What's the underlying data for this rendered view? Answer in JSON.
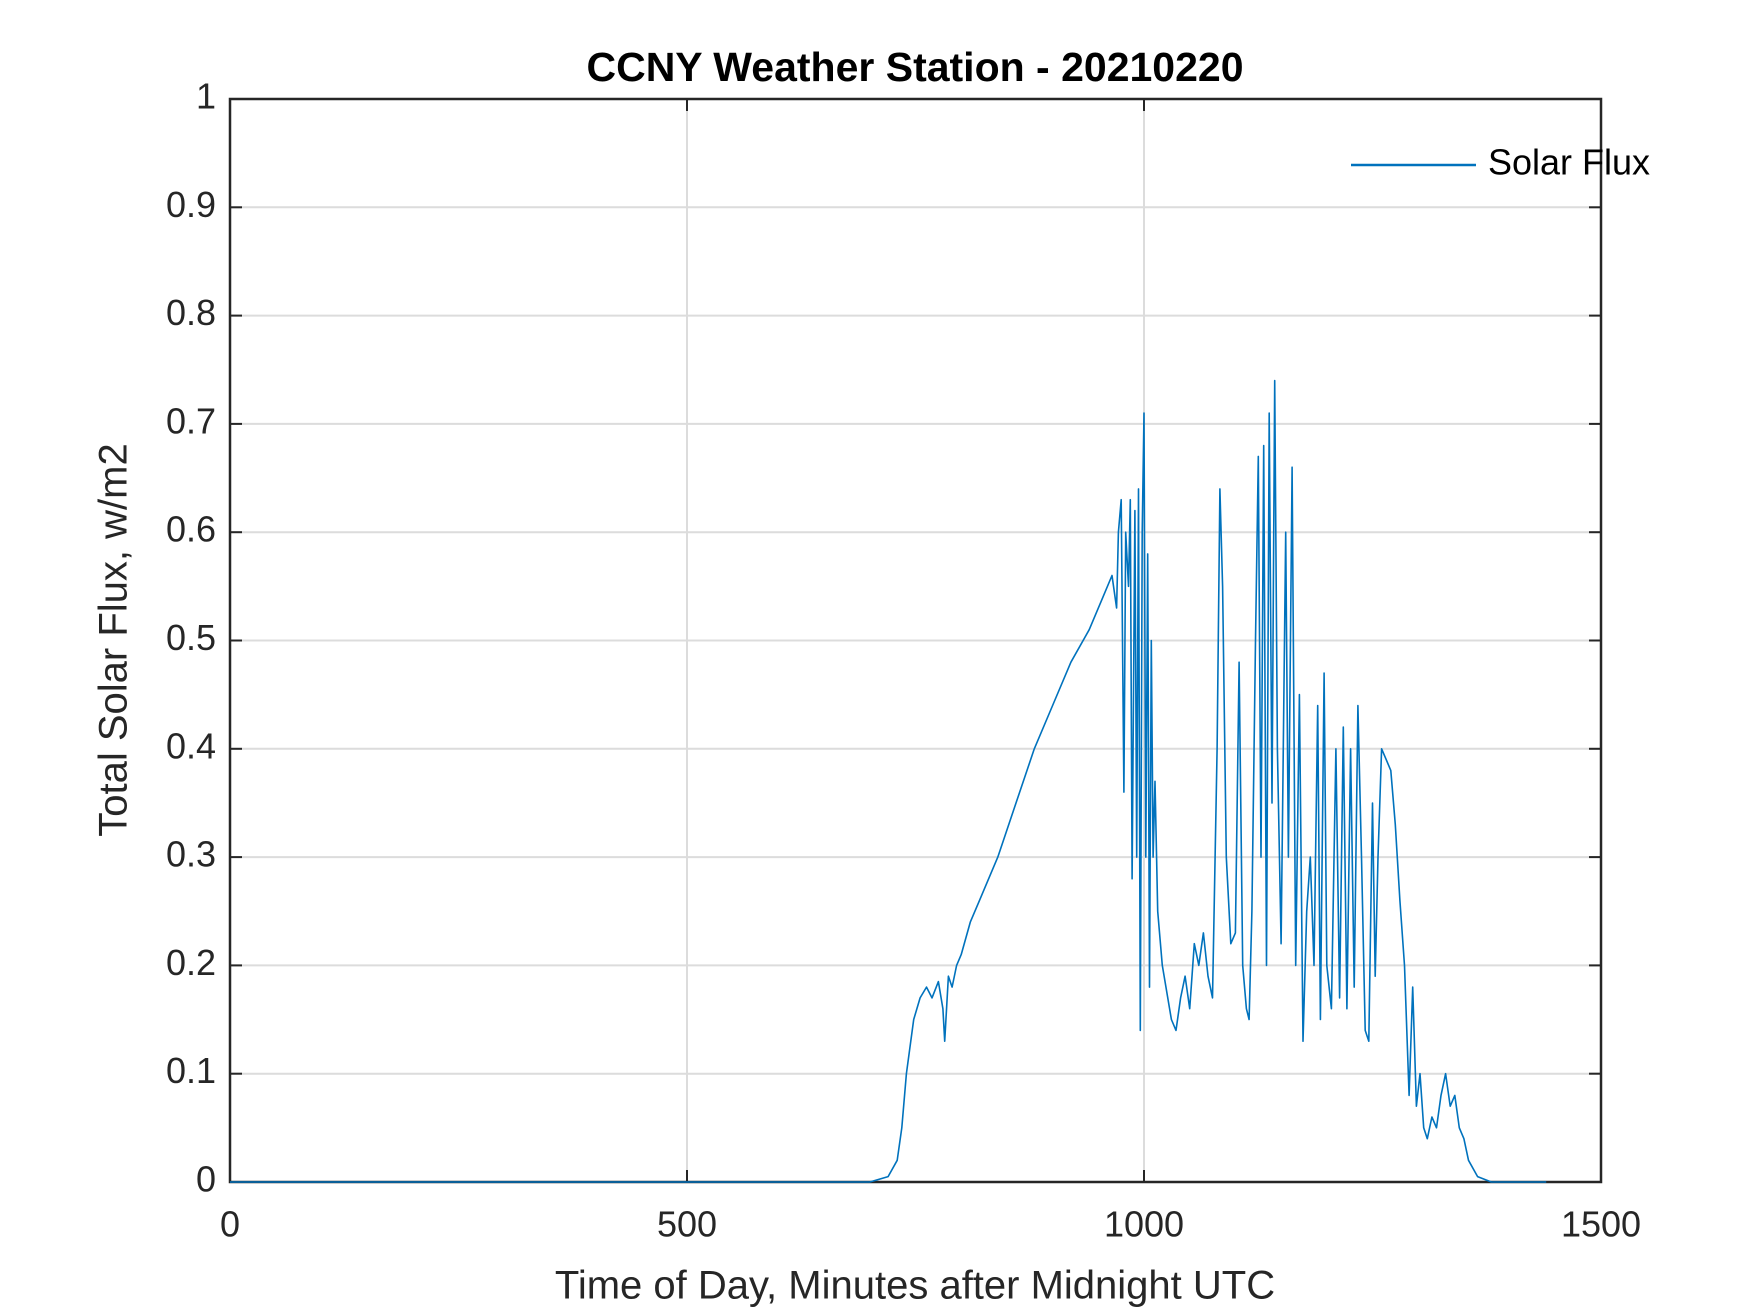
{
  "chart_data": {
    "type": "line",
    "title": "CCNY Weather Station - 20210220",
    "xlabel": "Time of Day, Minutes after Midnight UTC",
    "ylabel": "Total Solar Flux, w/m2",
    "x": [
      0,
      700,
      720,
      730,
      735,
      740,
      748,
      755,
      762,
      768,
      775,
      780,
      782,
      786,
      790,
      795,
      800,
      810,
      820,
      840,
      860,
      880,
      900,
      920,
      940,
      955,
      965,
      970,
      972,
      975,
      978,
      980,
      983,
      985,
      987,
      990,
      992,
      994,
      996,
      998,
      1000,
      1002,
      1004,
      1006,
      1008,
      1010,
      1012,
      1015,
      1020,
      1030,
      1035,
      1040,
      1045,
      1050,
      1055,
      1060,
      1065,
      1070,
      1075,
      1080,
      1083,
      1086,
      1090,
      1095,
      1100,
      1104,
      1108,
      1112,
      1115,
      1118,
      1122,
      1125,
      1128,
      1131,
      1134,
      1137,
      1140,
      1143,
      1146,
      1150,
      1155,
      1158,
      1162,
      1166,
      1170,
      1174,
      1178,
      1182,
      1186,
      1190,
      1193,
      1197,
      1200,
      1205,
      1210,
      1214,
      1218,
      1222,
      1226,
      1230,
      1234,
      1238,
      1242,
      1246,
      1250,
      1253,
      1256,
      1260,
      1265,
      1270,
      1275,
      1280,
      1285,
      1290,
      1294,
      1298,
      1302,
      1306,
      1310,
      1315,
      1320,
      1325,
      1330,
      1335,
      1340,
      1345,
      1350,
      1355,
      1365,
      1380,
      1440
    ],
    "series": [
      {
        "name": "Solar Flux",
        "color": "#0072bd",
        "values": [
          0,
          0,
          0.005,
          0.02,
          0.05,
          0.1,
          0.15,
          0.17,
          0.18,
          0.17,
          0.185,
          0.16,
          0.13,
          0.19,
          0.18,
          0.2,
          0.21,
          0.24,
          0.26,
          0.3,
          0.35,
          0.4,
          0.44,
          0.48,
          0.51,
          0.54,
          0.56,
          0.53,
          0.6,
          0.63,
          0.36,
          0.6,
          0.55,
          0.63,
          0.28,
          0.62,
          0.3,
          0.64,
          0.14,
          0.6,
          0.71,
          0.3,
          0.58,
          0.18,
          0.5,
          0.3,
          0.37,
          0.25,
          0.2,
          0.15,
          0.14,
          0.17,
          0.19,
          0.16,
          0.22,
          0.2,
          0.23,
          0.19,
          0.17,
          0.4,
          0.64,
          0.55,
          0.3,
          0.22,
          0.23,
          0.48,
          0.2,
          0.16,
          0.15,
          0.25,
          0.5,
          0.67,
          0.3,
          0.68,
          0.2,
          0.71,
          0.35,
          0.74,
          0.4,
          0.22,
          0.6,
          0.3,
          0.66,
          0.2,
          0.45,
          0.13,
          0.25,
          0.3,
          0.2,
          0.44,
          0.15,
          0.47,
          0.2,
          0.16,
          0.4,
          0.17,
          0.42,
          0.16,
          0.4,
          0.18,
          0.44,
          0.3,
          0.14,
          0.13,
          0.35,
          0.19,
          0.3,
          0.4,
          0.39,
          0.38,
          0.33,
          0.26,
          0.2,
          0.08,
          0.18,
          0.07,
          0.1,
          0.05,
          0.04,
          0.06,
          0.05,
          0.08,
          0.1,
          0.07,
          0.08,
          0.05,
          0.04,
          0.02,
          0.005,
          0,
          0
        ]
      }
    ],
    "xlim": [
      0,
      1500
    ],
    "xticks": [
      0,
      500,
      1000,
      1500
    ],
    "ylim": [
      0,
      1
    ],
    "yticks": [
      0,
      0.1,
      0.2,
      0.3,
      0.4,
      0.5,
      0.6,
      0.7,
      0.8,
      0.9,
      1
    ],
    "grid": true,
    "legend": "top-right"
  }
}
